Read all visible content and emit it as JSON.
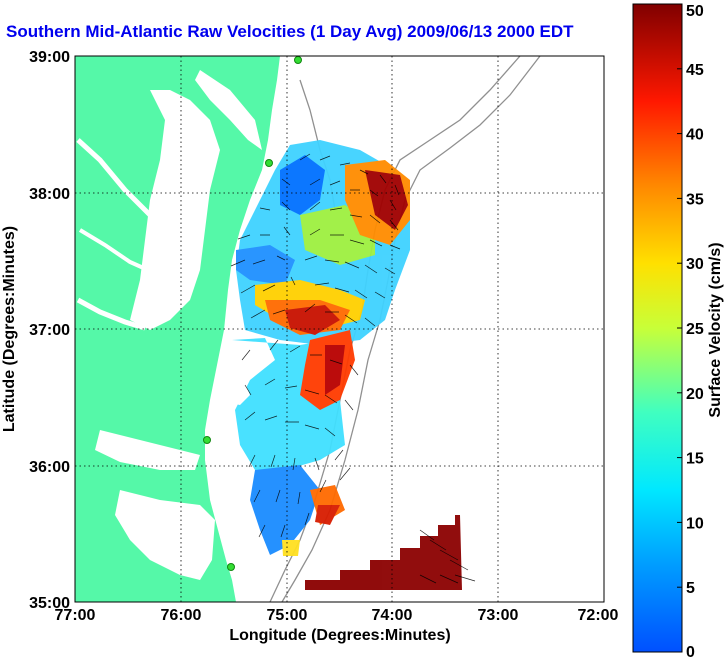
{
  "title": "Southern Mid-Atlantic Raw Velocities (1 Day Avg) 2009/06/13 2000 EDT",
  "x_axis": {
    "label": "Longitude (Degrees:Minutes)",
    "ticks": [
      "77:00",
      "76:00",
      "75:00",
      "74:00",
      "73:00",
      "72:00"
    ]
  },
  "y_axis": {
    "label": "Latitude (Degrees:Minutes)",
    "ticks": [
      "39:00",
      "38:00",
      "37:00",
      "36:00",
      "35:00"
    ]
  },
  "colorbar": {
    "label": "Surface Velocity (cm/s)",
    "ticks": [
      "0",
      "5",
      "10",
      "15",
      "20",
      "25",
      "30",
      "35",
      "40",
      "45",
      "50"
    ],
    "min": 0,
    "max": 50
  },
  "colors": {
    "land": "#55f8a8",
    "title": "#0000ee",
    "arrow": "#000000",
    "bathymetry": "#909090"
  }
}
